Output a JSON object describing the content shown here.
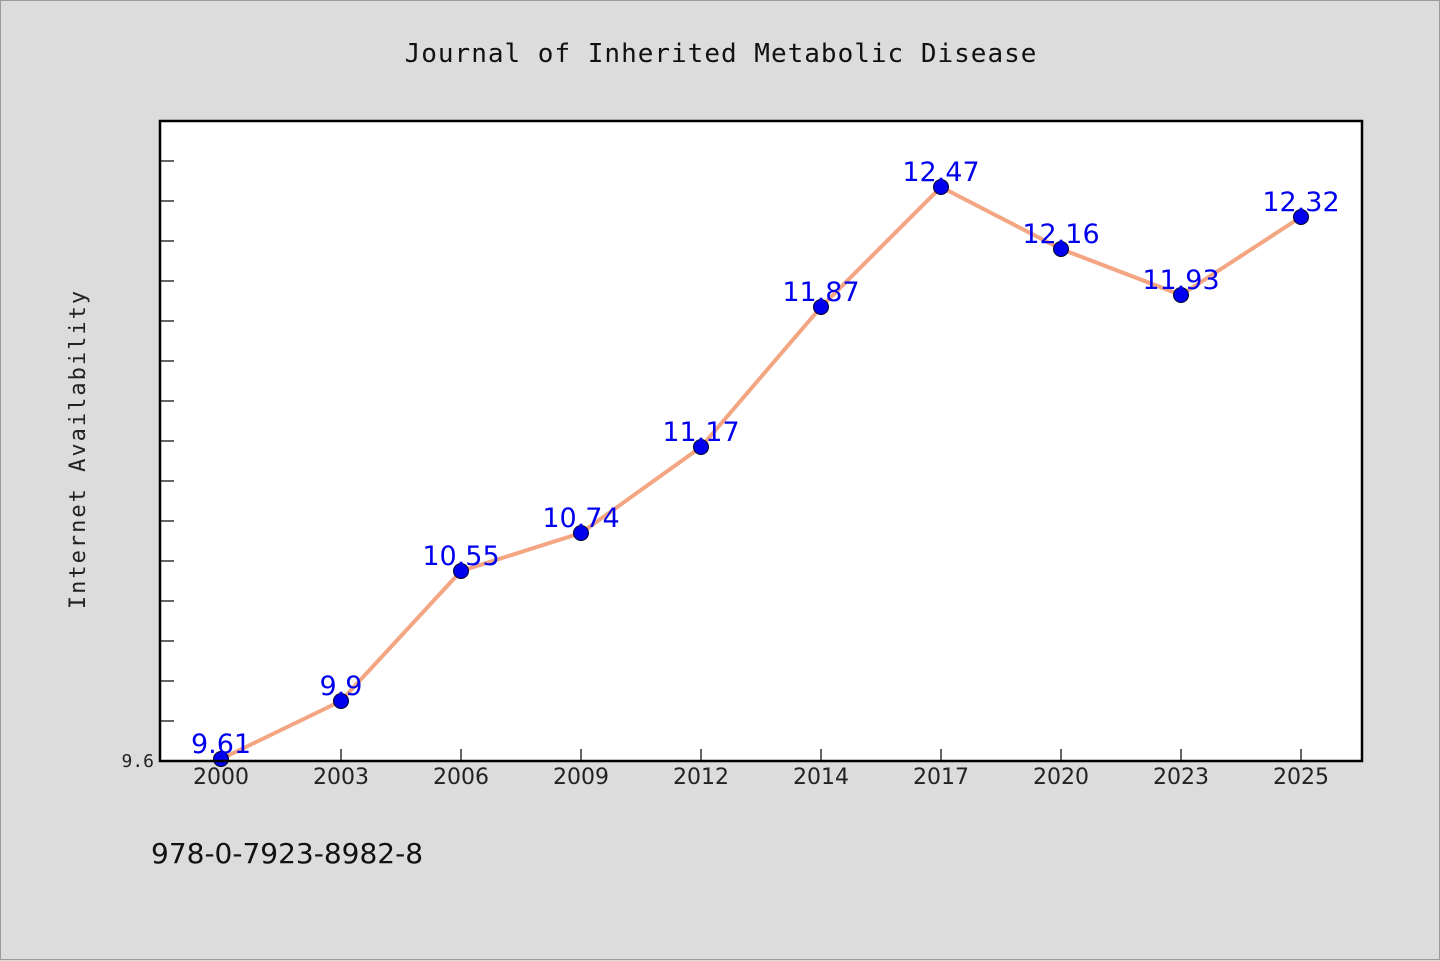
{
  "chart_data": {
    "type": "line",
    "title": "Journal of Inherited Metabolic Disease",
    "xlabel": "",
    "ylabel": "Internet Availability",
    "categories": [
      "2000",
      "2003",
      "2006",
      "2009",
      "2012",
      "2014",
      "2017",
      "2020",
      "2023",
      "2025"
    ],
    "values": [
      9.61,
      9.9,
      10.55,
      10.74,
      11.17,
      11.87,
      12.47,
      12.16,
      11.93,
      12.32
    ],
    "data_labels": [
      "9.61",
      "9.9",
      "10.55",
      "10.74",
      "11.17",
      "11.87",
      "12.47",
      "12.16",
      "11.93",
      "12.32"
    ],
    "ylim": [
      9.6,
      12.8
    ],
    "y_tick_labels": [
      {
        "value": 9.6,
        "label": "9.6"
      }
    ],
    "y_minor_step": 0.2,
    "grid": false,
    "line_color": "#f4a582",
    "marker_color": "#0000ee",
    "label_color": "#0000ee"
  },
  "footer": {
    "text": "978-0-7923-8982-8"
  }
}
